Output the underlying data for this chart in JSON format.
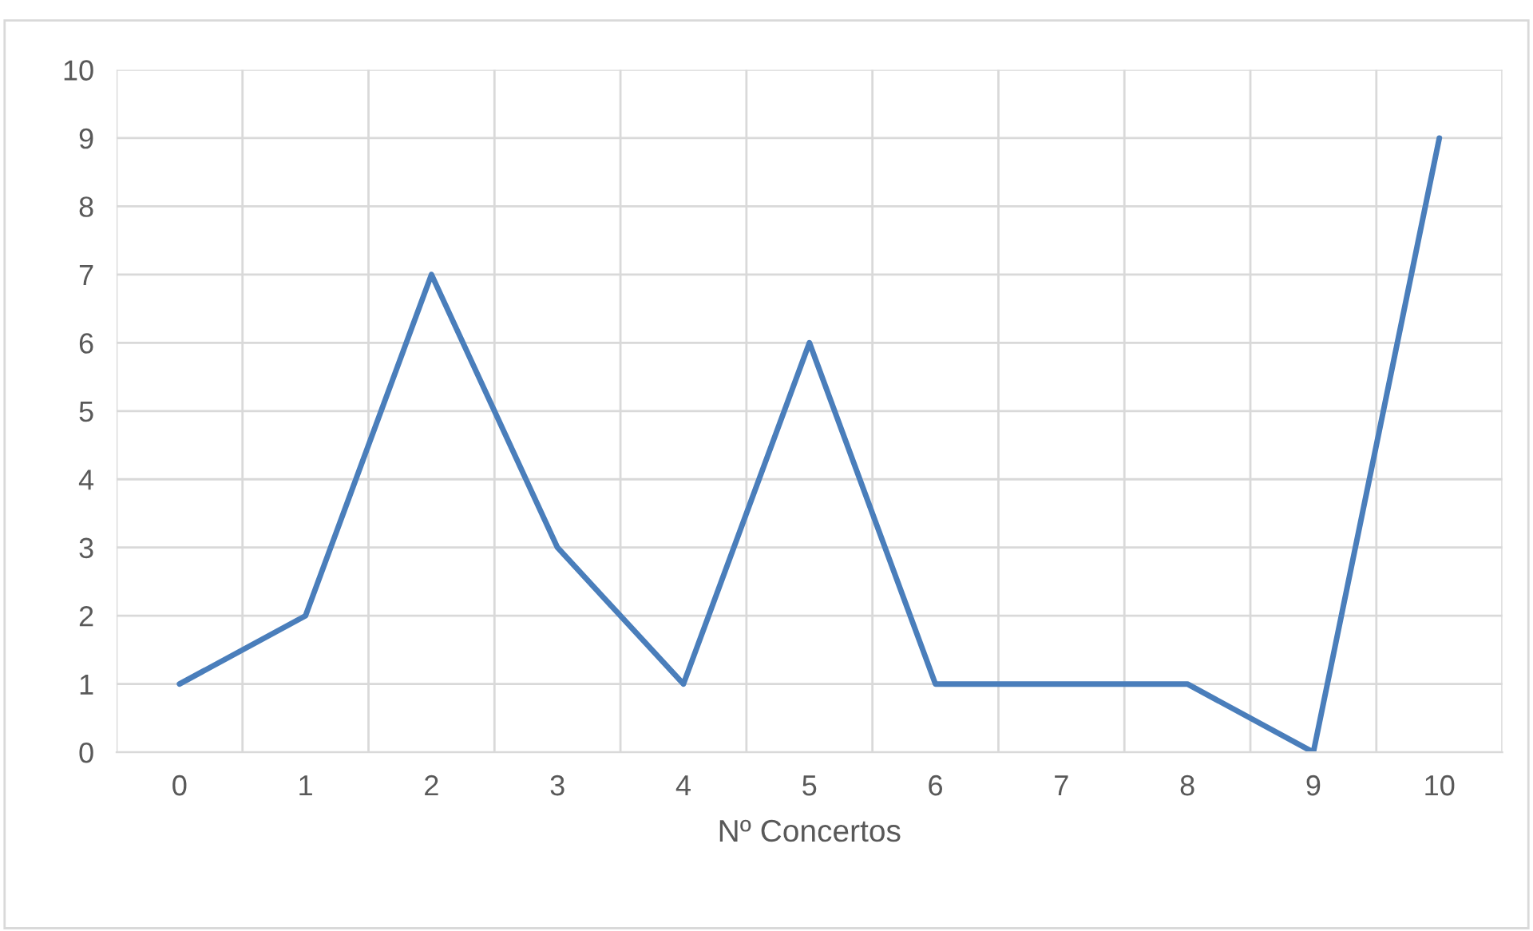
{
  "chart_data": {
    "type": "line",
    "xlabel": "Nº Concertos",
    "categories": [
      "0",
      "1",
      "2",
      "3",
      "4",
      "5",
      "6",
      "7",
      "8",
      "9",
      "10"
    ],
    "series": [
      {
        "color": "#4a7ebb",
        "values": [
          1,
          2,
          7,
          3,
          1,
          6,
          1,
          1,
          1,
          0,
          9
        ]
      }
    ],
    "ylim": [
      0,
      10
    ],
    "yticks": [
      0,
      1,
      2,
      3,
      4,
      5,
      6,
      7,
      8,
      9,
      10
    ],
    "grid": true,
    "marker": "none",
    "line_style": "solid"
  }
}
